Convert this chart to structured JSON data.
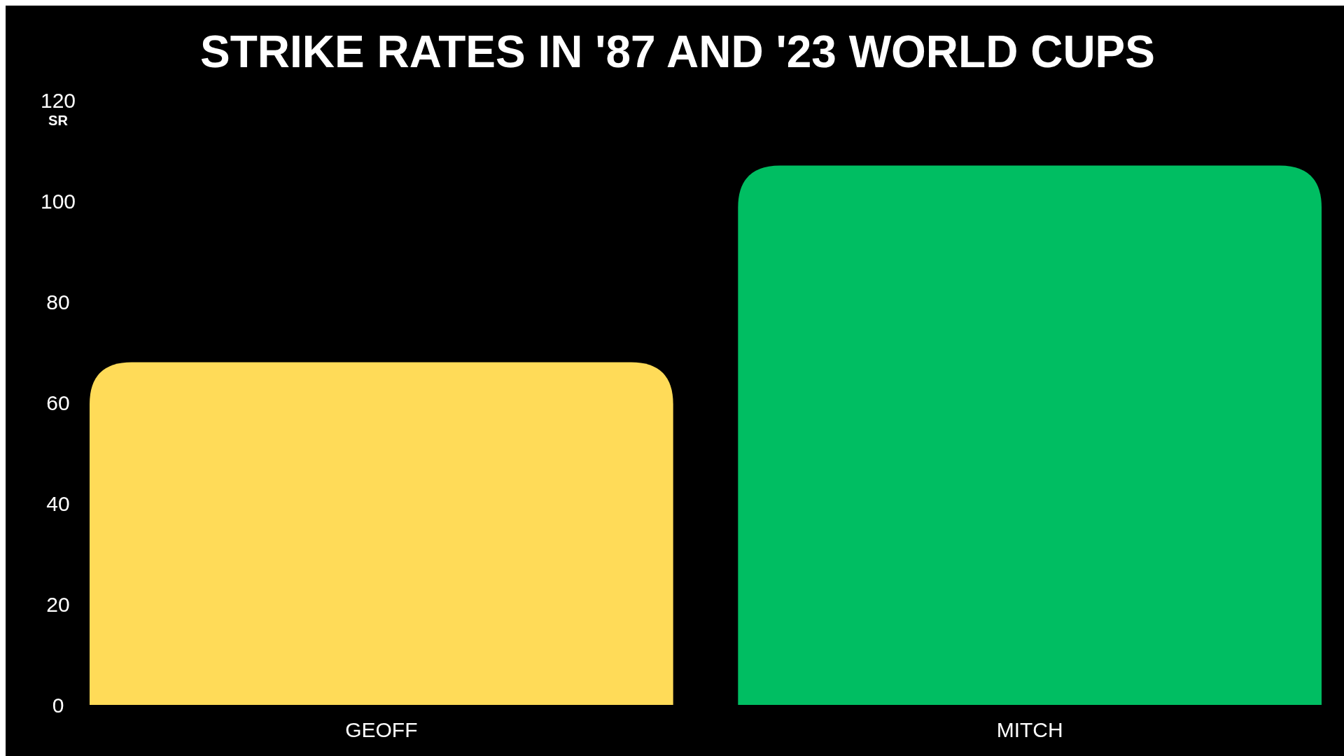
{
  "chart_data": {
    "type": "bar",
    "title": "STRIKE RATES IN '87 AND '23 WORLD CUPS",
    "ylabel": "SR",
    "categories": [
      "GEOFF",
      "MITCH"
    ],
    "values": [
      68,
      107
    ],
    "colors": [
      "#ffdb58",
      "#00be62"
    ],
    "ylim": [
      0,
      120
    ],
    "yticks": [
      0,
      20,
      40,
      60,
      80,
      100,
      120
    ],
    "grid": false
  }
}
